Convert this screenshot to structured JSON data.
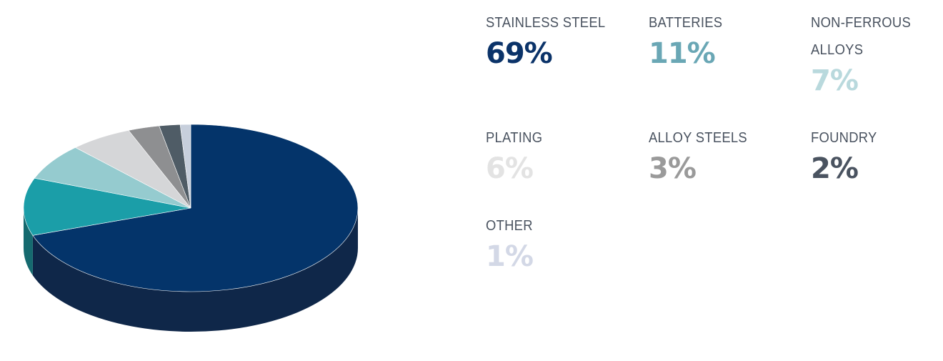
{
  "chart_data": {
    "type": "pie",
    "title": "",
    "categories": [
      "STAINLESS STEEL",
      "BATTERIES",
      "NON-FERROUS ALLOYS",
      "PLATING",
      "ALLOY STEELS",
      "FOUNDRY",
      "OTHER"
    ],
    "values": [
      69,
      11,
      7,
      6,
      3,
      2,
      1
    ],
    "value_labels": [
      "69%",
      "11%",
      "7%",
      "6%",
      "3%",
      "2%",
      "1%"
    ],
    "unit": "%",
    "style": "3d",
    "colors": {
      "slices": [
        "#04346a",
        "#1b9ea8",
        "#95cbcf",
        "#d5d6d8",
        "#8e8f91",
        "#4f5c66",
        "#c7cfdc"
      ],
      "sides": [
        "#0f2749",
        "#156a6f",
        "#6d9ea1",
        "#a9aaac",
        "#6a6b6d",
        "#3a444c",
        "#9aa2ae"
      ],
      "value_text": [
        "#0b3369",
        "#6aa7b5",
        "#b9d9dd",
        "#e3e3e3",
        "#9a9a9a",
        "#4a5360",
        "#d3d8e6"
      ],
      "label_text": "#4a5360"
    },
    "legend_placement": "right"
  },
  "legend": {
    "items": [
      {
        "label": "STAINLESS STEEL",
        "value": "69%"
      },
      {
        "label": "BATTERIES",
        "value": "11%"
      },
      {
        "label": "NON-FERROUS ALLOYS",
        "value": "7%"
      },
      {
        "label": "PLATING",
        "value": "6%"
      },
      {
        "label": "ALLOY STEELS",
        "value": "3%"
      },
      {
        "label": "FOUNDRY",
        "value": "2%"
      },
      {
        "label": "OTHER",
        "value": "1%"
      }
    ]
  }
}
